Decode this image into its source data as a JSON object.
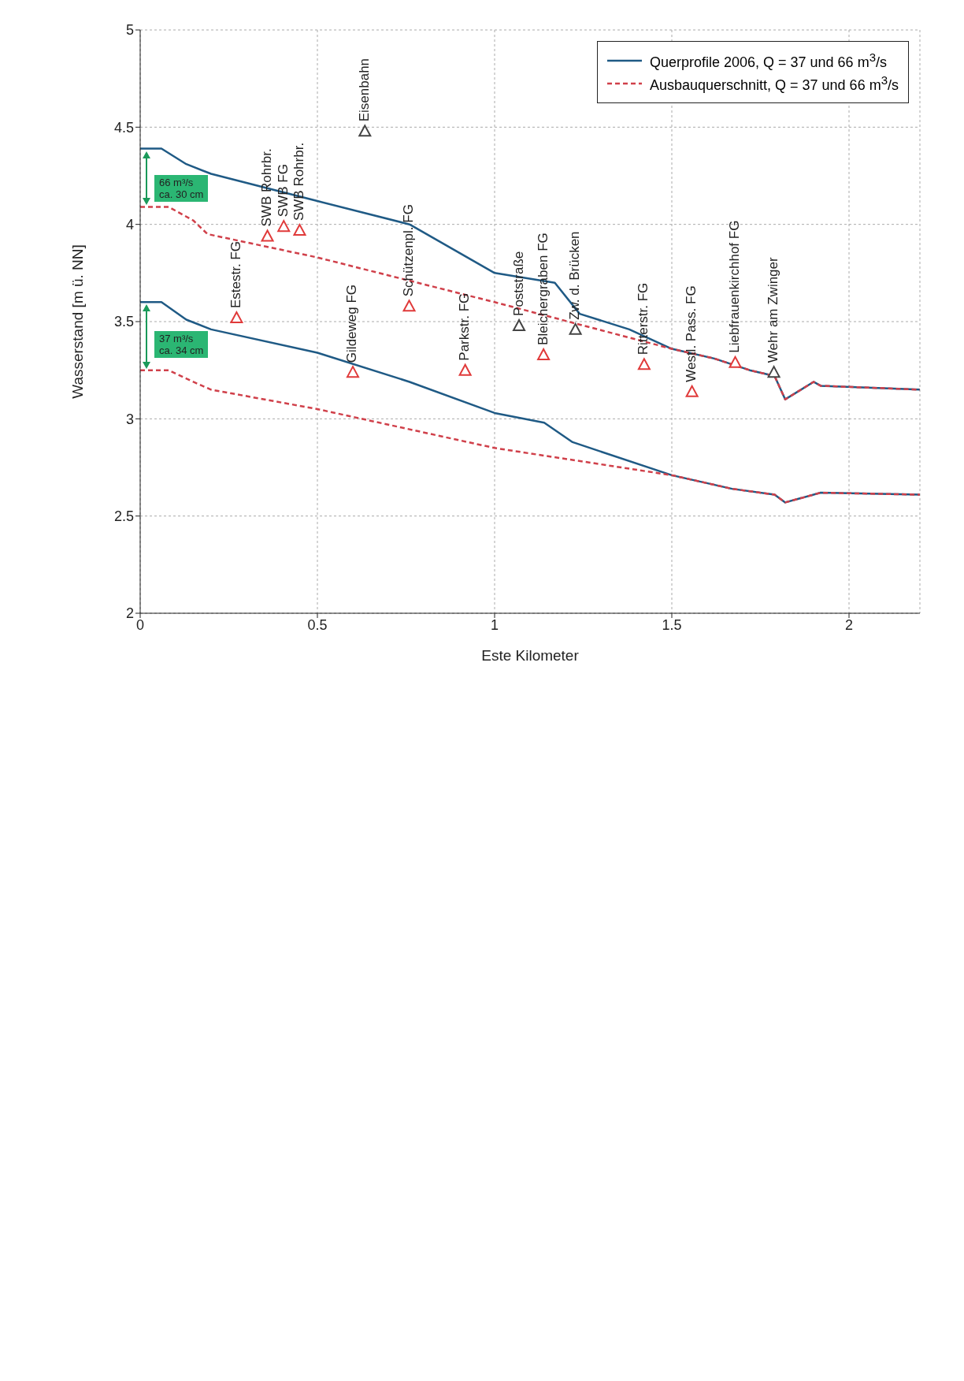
{
  "chart_data": {
    "type": "line",
    "xlabel": "Este Kilometer",
    "ylabel": "Wasserstand [m ü. NN]",
    "xlim": [
      0,
      2.2
    ],
    "xticks": [
      0,
      0.5,
      1,
      1.5,
      2
    ],
    "ylim": [
      2,
      5
    ],
    "yticks": [
      2,
      2.5,
      3,
      3.5,
      4,
      4.5,
      5
    ],
    "grid": true,
    "legend": "top right",
    "series": [
      {
        "name": "Querprofile 2006, Q = 37 und 66 m$^{3}$/s",
        "color": "#1f5a85",
        "line_style": "solid",
        "x": [
          0,
          0.06,
          0.13,
          0.2,
          0.5,
          0.76,
          1.0,
          1.17,
          1.24,
          1.38,
          1.5,
          1.62,
          1.72,
          1.79,
          1.82,
          1.9,
          1.92,
          2.2
        ],
        "values": [
          4.39,
          4.39,
          4.31,
          4.26,
          4.12,
          4.0,
          3.75,
          3.7,
          3.54,
          3.46,
          3.36,
          3.31,
          3.25,
          3.22,
          3.1,
          3.19,
          3.17,
          3.15
        ]
      },
      {
        "color": "#1f5a85",
        "line_style": "solid",
        "x": [
          0,
          0.06,
          0.13,
          0.2,
          0.5,
          0.76,
          1.0,
          1.14,
          1.22,
          1.5,
          1.67,
          1.79,
          1.82,
          1.92,
          2.2
        ],
        "values": [
          3.6,
          3.6,
          3.51,
          3.46,
          3.34,
          3.19,
          3.03,
          2.98,
          2.88,
          2.71,
          2.64,
          2.61,
          2.57,
          2.62,
          2.61
        ]
      },
      {
        "name": "Ausbauquerschnitt, Q = 37 und 66 m$^{3}$/s",
        "color": "#d0404a",
        "line_style": "dashed",
        "x": [
          0,
          0.08,
          0.15,
          0.19,
          0.5,
          1.0,
          1.5,
          1.62,
          1.72,
          1.79,
          1.82,
          1.9,
          1.92,
          2.2
        ],
        "values": [
          4.09,
          4.09,
          4.02,
          3.95,
          3.83,
          3.6,
          3.36,
          3.31,
          3.25,
          3.22,
          3.1,
          3.19,
          3.17,
          3.15
        ]
      },
      {
        "color": "#d0404a",
        "line_style": "dashed",
        "x": [
          0,
          0.08,
          0.15,
          0.2,
          0.5,
          1.0,
          1.5,
          1.67,
          1.79,
          1.82,
          1.92,
          2.2
        ],
        "values": [
          3.25,
          3.25,
          3.19,
          3.15,
          3.05,
          2.85,
          2.71,
          2.64,
          2.61,
          2.57,
          2.62,
          2.61
        ]
      },
      {
        "type": "scatter",
        "marker": "triangle",
        "color": "#e03a3a",
        "x": [
          0.272,
          0.359,
          0.405,
          0.45,
          0.6,
          0.759,
          0.917,
          1.138,
          1.422,
          1.557,
          1.679
        ],
        "values": [
          3.52,
          3.94,
          3.99,
          3.97,
          3.24,
          3.58,
          3.25,
          3.33,
          3.28,
          3.14,
          3.29
        ]
      },
      {
        "type": "scatter",
        "marker": "triangle",
        "color": "#444444",
        "x": [
          0.634,
          1.069,
          1.228,
          1.788
        ],
        "values": [
          4.48,
          3.48,
          3.46,
          3.24
        ]
      }
    ],
    "annotations": [
      {
        "text": "Estestr. FG",
        "x": 0.272,
        "y": 3.52
      },
      {
        "text": "SWB Rohrbr.",
        "x": 0.359,
        "y": 3.94
      },
      {
        "text": "SWB FG",
        "x": 0.405,
        "y": 3.99
      },
      {
        "text": "SWB Rohrbr.",
        "x": 0.45,
        "y": 3.97
      },
      {
        "text": "Eisenbahn",
        "x": 0.634,
        "y": 4.48
      },
      {
        "text": "Gildeweg FG",
        "x": 0.6,
        "y": 3.24
      },
      {
        "text": "Schützenpl. FG",
        "x": 0.759,
        "y": 3.58
      },
      {
        "text": "Parkstr. FG",
        "x": 0.917,
        "y": 3.25
      },
      {
        "text": "Poststraße",
        "x": 1.069,
        "y": 3.48
      },
      {
        "text": "Bleichergraben FG",
        "x": 1.138,
        "y": 3.33
      },
      {
        "text": "Zw. d. Brücken",
        "x": 1.228,
        "y": 3.46
      },
      {
        "text": "Ritterstr. FG",
        "x": 1.422,
        "y": 3.28
      },
      {
        "text": "Westl. Pass. FG",
        "x": 1.557,
        "y": 3.14
      },
      {
        "text": "Liebfrauenkirchhof FG",
        "x": 1.679,
        "y": 3.29
      },
      {
        "text": "Wehr am Zwinger",
        "x": 1.788,
        "y": 3.24
      },
      "66 m³/s\nca. 30 cm",
      "37 m³/s\nca. 34 cm"
    ]
  }
}
